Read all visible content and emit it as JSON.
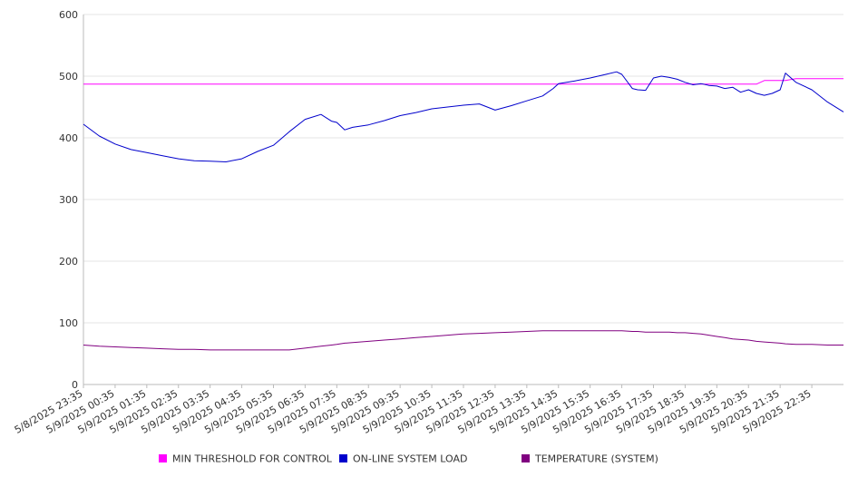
{
  "chart_data": {
    "type": "line",
    "title": "",
    "xlabel": "",
    "ylabel": "",
    "ylim": [
      0,
      600
    ],
    "yticks": [
      0,
      100,
      200,
      300,
      400,
      500,
      600
    ],
    "grid": true,
    "legend_position": "bottom",
    "x_tick_labels": [
      "5/8/2025 23:35",
      "5/9/2025 00:35",
      "5/9/2025 01:35",
      "5/9/2025 02:35",
      "5/9/2025 03:35",
      "5/9/2025 04:35",
      "5/9/2025 05:35",
      "5/9/2025 06:35",
      "5/9/2025 07:35",
      "5/9/2025 08:35",
      "5/9/2025 09:35",
      "5/9/2025 10:35",
      "5/9/2025 11:35",
      "5/9/2025 12:35",
      "5/9/2025 13:35",
      "5/9/2025 14:35",
      "5/9/2025 15:35",
      "5/9/2025 16:35",
      "5/9/2025 17:35",
      "5/9/2025 18:35",
      "5/9/2025 19:35",
      "5/9/2025 20:35",
      "5/9/2025 21:35",
      "5/9/2025 22:35"
    ],
    "x": [
      "5/8/2025 23:35",
      "5/9/2025 00:05",
      "5/9/2025 00:35",
      "5/9/2025 01:05",
      "5/9/2025 01:35",
      "5/9/2025 02:05",
      "5/9/2025 02:35",
      "5/9/2025 03:05",
      "5/9/2025 03:35",
      "5/9/2025 04:05",
      "5/9/2025 04:35",
      "5/9/2025 05:05",
      "5/9/2025 05:35",
      "5/9/2025 06:05",
      "5/9/2025 06:35",
      "5/9/2025 07:05",
      "5/9/2025 07:25",
      "5/9/2025 07:35",
      "5/9/2025 07:50",
      "5/9/2025 08:05",
      "5/9/2025 08:35",
      "5/9/2025 09:05",
      "5/9/2025 09:35",
      "5/9/2025 10:05",
      "5/9/2025 10:35",
      "5/9/2025 11:05",
      "5/9/2025 11:35",
      "5/9/2025 12:05",
      "5/9/2025 12:35",
      "5/9/2025 13:05",
      "5/9/2025 13:35",
      "5/9/2025 14:05",
      "5/9/2025 14:25",
      "5/9/2025 14:35",
      "5/9/2025 15:05",
      "5/9/2025 15:35",
      "5/9/2025 16:05",
      "5/9/2025 16:25",
      "5/9/2025 16:35",
      "5/9/2025 16:55",
      "5/9/2025 17:05",
      "5/9/2025 17:20",
      "5/9/2025 17:35",
      "5/9/2025 17:50",
      "5/9/2025 18:05",
      "5/9/2025 18:20",
      "5/9/2025 18:35",
      "5/9/2025 18:50",
      "5/9/2025 19:05",
      "5/9/2025 19:20",
      "5/9/2025 19:35",
      "5/9/2025 19:50",
      "5/9/2025 20:05",
      "5/9/2025 20:20",
      "5/9/2025 20:35",
      "5/9/2025 20:50",
      "5/9/2025 21:05",
      "5/9/2025 21:20",
      "5/9/2025 21:35",
      "5/9/2025 21:45",
      "5/9/2025 22:05",
      "5/9/2025 22:35",
      "5/9/2025 23:05",
      "5/9/2025 23:35"
    ],
    "series": [
      {
        "name": "MIN THRESHOLD FOR CONTROL",
        "color": "#ff00ff",
        "values": [
          487,
          487,
          487,
          487,
          487,
          487,
          487,
          487,
          487,
          487,
          487,
          487,
          487,
          487,
          487,
          487,
          487,
          487,
          487,
          487,
          487,
          487,
          487,
          487,
          487,
          487,
          487,
          487,
          487,
          487,
          487,
          487,
          487,
          487,
          487,
          487,
          487,
          487,
          487,
          487,
          487,
          487,
          487,
          487,
          487,
          487,
          487,
          487,
          487,
          487,
          487,
          487,
          487,
          487,
          487,
          487,
          493,
          493,
          493,
          493,
          496,
          496,
          496,
          496
        ]
      },
      {
        "name": "ON-LINE SYSTEM LOAD",
        "color": "#0000cc",
        "values": [
          422,
          403,
          390,
          381,
          376,
          371,
          366,
          363,
          362,
          361,
          366,
          378,
          388,
          410,
          430,
          438,
          427,
          425,
          413,
          417,
          421,
          428,
          436,
          441,
          447,
          450,
          453,
          455,
          445,
          452,
          460,
          468,
          480,
          488,
          492,
          497,
          503,
          507,
          503,
          480,
          478,
          477,
          497,
          500,
          498,
          495,
          490,
          486,
          488,
          485,
          484,
          480,
          482,
          474,
          478,
          472,
          469,
          472,
          478,
          505,
          490,
          478,
          458,
          442
        ]
      },
      {
        "name": "TEMPERATURE (SYSTEM)",
        "color": "#800080",
        "values": [
          64,
          62,
          61,
          60,
          59,
          58,
          57,
          57,
          56,
          56,
          56,
          56,
          56,
          56,
          59,
          62,
          64,
          65,
          67,
          68,
          70,
          72,
          74,
          76,
          78,
          80,
          82,
          83,
          84,
          85,
          86,
          87,
          87,
          87,
          87,
          87,
          87,
          87,
          87,
          86,
          86,
          85,
          85,
          85,
          85,
          84,
          84,
          83,
          82,
          80,
          78,
          76,
          74,
          73,
          72,
          70,
          69,
          68,
          67,
          66,
          65,
          65,
          64,
          64
        ]
      }
    ]
  }
}
